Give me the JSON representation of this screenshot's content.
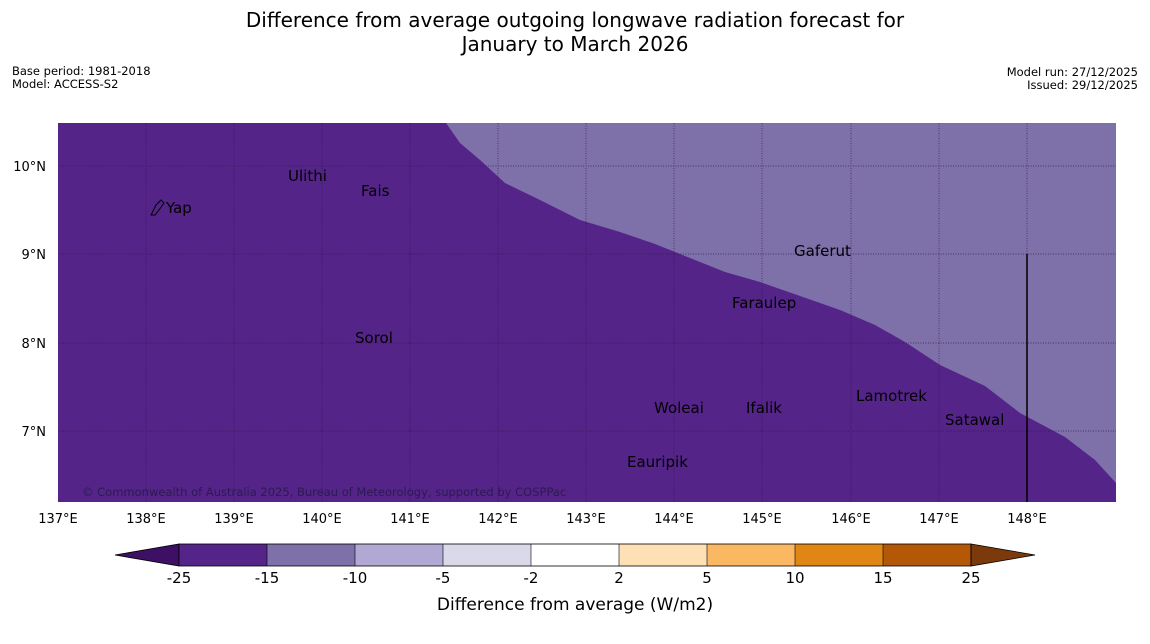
{
  "title": {
    "line1": "Difference from average outgoing longwave radiation forecast for",
    "line2": "January to March 2026"
  },
  "meta": {
    "base_period": "Base period: 1981-2018",
    "model": "Model: ACCESS-S2",
    "model_run": "Model run: 27/12/2025",
    "issued": "Issued: 29/12/2025"
  },
  "map": {
    "lat_labels": [
      "10°N",
      "9°N",
      "8°N",
      "7°N"
    ],
    "lon_labels": [
      "137°E",
      "138°E",
      "139°E",
      "140°E",
      "141°E",
      "142°E",
      "143°E",
      "144°E",
      "145°E",
      "146°E",
      "147°E",
      "148°E"
    ],
    "places": [
      "Yap",
      "Ulithi",
      "Fais",
      "Gaferut",
      "Faraulep",
      "Sorol",
      "Woleai",
      "Ifalik",
      "Lamotrek",
      "Satawal",
      "Eauripik"
    ],
    "copyright": "© Commonwealth of Australia 2025, Bureau of Meteorology, supported by COSPPac",
    "colors": {
      "below_25": "#3d1065",
      "band_25_15": "#542488",
      "band_15_10": "#7e70a8",
      "band_10_5": "#b1a9d3",
      "band_5_2": "#d9d9ea",
      "band_2_2": "#ffffff",
      "band_2_5": "#fde0b4",
      "band_5_10": "#fbb862",
      "band_10_15": "#e08615",
      "band_15_25": "#b35807",
      "above_25": "#7c3a0c"
    }
  },
  "colorbar": {
    "ticks": [
      "-25",
      "-15",
      "-10",
      "-5",
      "-2",
      "2",
      "5",
      "10",
      "15",
      "25"
    ],
    "title": "Difference from average (W/m2)"
  }
}
